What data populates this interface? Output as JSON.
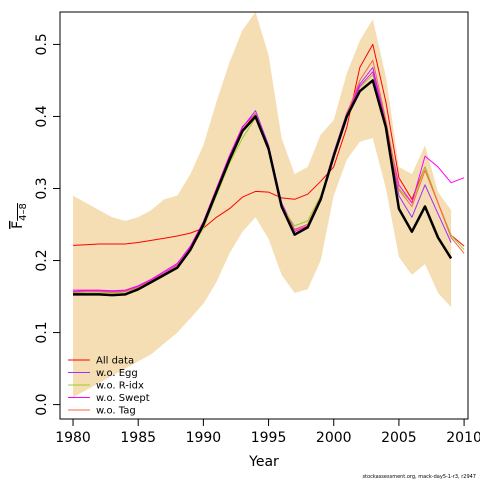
{
  "chart_data": {
    "type": "line",
    "xlabel": "Year",
    "ylabel": "F",
    "ylabel_sub": "4–8",
    "xlim": [
      1979.0,
      2010.3
    ],
    "ylim": [
      -0.02,
      0.545
    ],
    "x_ticks": [
      1980,
      1985,
      1990,
      1995,
      2000,
      2005,
      2010
    ],
    "y_ticks": [
      0.0,
      0.1,
      0.2,
      0.3,
      0.4,
      0.5
    ],
    "x_tick_labels": [
      "1980",
      "1985",
      "1990",
      "1995",
      "2000",
      "2005",
      "2010"
    ],
    "y_tick_labels": [
      "0.0",
      "0.1",
      "0.2",
      "0.3",
      "0.4",
      "0.5"
    ],
    "legend_position": "bottom-left",
    "footnote": "stockassessment.org, mack-day5-1-r3, r2947",
    "colors": {
      "band": "#f5deb3",
      "main": "#000000",
      "all_data": "#ff0000",
      "wo_egg": "#9b30ff",
      "wo_ridx": "#9acd32",
      "wo_swept": "#ff00ff",
      "wo_tag": "#ff6347"
    },
    "band": {
      "x": [
        1980,
        1981,
        1982,
        1983,
        1984,
        1985,
        1986,
        1987,
        1988,
        1989,
        1990,
        1991,
        1992,
        1993,
        1994,
        1995,
        1996,
        1997,
        1998,
        1999,
        2000,
        2001,
        2002,
        2003,
        2004,
        2005,
        2006,
        2007,
        2008,
        2009
      ],
      "lower": [
        0.01,
        0.02,
        0.03,
        0.04,
        0.05,
        0.06,
        0.07,
        0.085,
        0.1,
        0.12,
        0.14,
        0.17,
        0.21,
        0.24,
        0.26,
        0.23,
        0.18,
        0.155,
        0.16,
        0.2,
        0.29,
        0.34,
        0.365,
        0.37,
        0.3,
        0.205,
        0.18,
        0.195,
        0.155,
        0.135
      ],
      "upper": [
        0.29,
        0.28,
        0.27,
        0.26,
        0.255,
        0.26,
        0.27,
        0.285,
        0.29,
        0.32,
        0.36,
        0.42,
        0.475,
        0.52,
        0.545,
        0.485,
        0.37,
        0.32,
        0.33,
        0.375,
        0.395,
        0.46,
        0.505,
        0.535,
        0.455,
        0.33,
        0.32,
        0.36,
        0.295,
        0.27
      ]
    },
    "series": [
      {
        "name": "main",
        "x": [
          1980,
          1981,
          1982,
          1983,
          1984,
          1985,
          1986,
          1987,
          1988,
          1989,
          1990,
          1991,
          1992,
          1993,
          1994,
          1995,
          1996,
          1997,
          1998,
          1999,
          2000,
          2001,
          2002,
          2003,
          2004,
          2005,
          2006,
          2007,
          2008,
          2009
        ],
        "values": [
          0.153,
          0.153,
          0.153,
          0.152,
          0.153,
          0.16,
          0.17,
          0.18,
          0.19,
          0.215,
          0.25,
          0.295,
          0.34,
          0.38,
          0.4,
          0.355,
          0.275,
          0.236,
          0.246,
          0.285,
          0.345,
          0.4,
          0.435,
          0.45,
          0.385,
          0.272,
          0.24,
          0.275,
          0.232,
          0.203
        ]
      },
      {
        "name": "All data",
        "x": [
          1980,
          1981,
          1982,
          1983,
          1984,
          1985,
          1986,
          1987,
          1988,
          1989,
          1990,
          1991,
          1992,
          1993,
          1994,
          1995,
          1996,
          1997,
          1998,
          1999,
          2000,
          2001,
          2002,
          2003,
          2004,
          2005,
          2006,
          2007,
          2008,
          2009,
          2010
        ],
        "values": [
          0.221,
          0.222,
          0.223,
          0.223,
          0.223,
          0.225,
          0.228,
          0.231,
          0.234,
          0.238,
          0.245,
          0.26,
          0.272,
          0.288,
          0.296,
          0.295,
          0.287,
          0.285,
          0.292,
          0.31,
          0.33,
          0.385,
          0.468,
          0.5,
          0.42,
          0.315,
          0.285,
          0.33,
          0.28,
          0.235,
          0.22
        ]
      },
      {
        "name": "w.o. Egg",
        "x": [
          1980,
          1981,
          1982,
          1983,
          1984,
          1985,
          1986,
          1987,
          1988,
          1989,
          1990,
          1991,
          1992,
          1993,
          1994,
          1995,
          1996,
          1997,
          1998,
          1999,
          2000,
          2001,
          2002,
          2003,
          2004,
          2005,
          2006,
          2007,
          2008,
          2009
        ],
        "values": [
          0.157,
          0.158,
          0.158,
          0.157,
          0.158,
          0.164,
          0.173,
          0.183,
          0.194,
          0.218,
          0.252,
          0.298,
          0.345,
          0.385,
          0.408,
          0.36,
          0.28,
          0.243,
          0.25,
          0.288,
          0.35,
          0.405,
          0.445,
          0.468,
          0.39,
          0.29,
          0.26,
          0.305,
          0.265,
          0.225
        ]
      },
      {
        "name": "w.o. R-idx",
        "x": [
          1980,
          1981,
          1982,
          1983,
          1984,
          1985,
          1986,
          1987,
          1988,
          1989,
          1990,
          1991,
          1992,
          1993,
          1994,
          1995,
          1996,
          1997,
          1998,
          1999,
          2000,
          2001,
          2002,
          2003,
          2004,
          2005,
          2006,
          2007,
          2008,
          2009,
          2010
        ],
        "values": [
          0.155,
          0.156,
          0.156,
          0.155,
          0.156,
          0.162,
          0.171,
          0.181,
          0.19,
          0.214,
          0.245,
          0.29,
          0.335,
          0.37,
          0.398,
          0.352,
          0.275,
          0.248,
          0.255,
          0.29,
          0.345,
          0.4,
          0.44,
          0.458,
          0.385,
          0.3,
          0.28,
          0.33,
          0.28,
          0.235,
          0.215
        ]
      },
      {
        "name": "w.o. Swept",
        "x": [
          1980,
          1981,
          1982,
          1983,
          1984,
          1985,
          1986,
          1987,
          1988,
          1989,
          1990,
          1991,
          1992,
          1993,
          1994,
          1995,
          1996,
          1997,
          1998,
          1999,
          2000,
          2001,
          2002,
          2003,
          2004,
          2005,
          2006,
          2007,
          2008,
          2009,
          2010
        ],
        "values": [
          0.159,
          0.159,
          0.159,
          0.158,
          0.159,
          0.165,
          0.174,
          0.185,
          0.196,
          0.22,
          0.254,
          0.3,
          0.346,
          0.386,
          0.404,
          0.358,
          0.278,
          0.24,
          0.248,
          0.287,
          0.348,
          0.402,
          0.442,
          0.462,
          0.388,
          0.305,
          0.28,
          0.345,
          0.33,
          0.308,
          0.315
        ]
      },
      {
        "name": "w.o. Tag",
        "x": [
          1980,
          1981,
          1982,
          1983,
          1984,
          1985,
          1986,
          1987,
          1988,
          1989,
          1990,
          1991,
          1992,
          1993,
          1994,
          1995,
          1996,
          1997,
          1998,
          1999,
          2000,
          2001,
          2002,
          2003,
          2004,
          2005,
          2006,
          2007,
          2008,
          2009,
          2010
        ],
        "values": [
          0.156,
          0.157,
          0.157,
          0.156,
          0.157,
          0.163,
          0.172,
          0.182,
          0.193,
          0.217,
          0.25,
          0.296,
          0.342,
          0.382,
          0.404,
          0.357,
          0.277,
          0.242,
          0.25,
          0.288,
          0.348,
          0.403,
          0.45,
          0.478,
          0.395,
          0.298,
          0.275,
          0.325,
          0.28,
          0.232,
          0.21
        ]
      }
    ],
    "legend": [
      "All data",
      "w.o. Egg",
      "w.o. R-idx",
      "w.o. Swept",
      "w.o. Tag"
    ]
  }
}
